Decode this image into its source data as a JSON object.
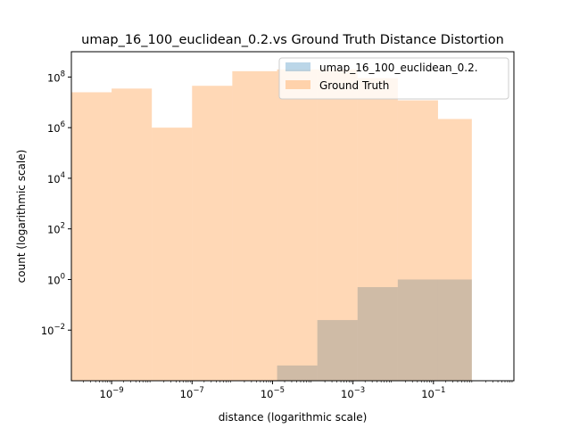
{
  "chart_data": {
    "type": "bar",
    "title": "umap_16_100_euclidean_0.2.vs Ground Truth Distance Distortion",
    "xlabel": "distance (logarithmic scale)",
    "ylabel": "count (logarithmic scale)",
    "xscale": "log",
    "yscale": "log",
    "xlim": [
      1e-10,
      10
    ],
    "ylim": [
      0.0001,
      1000000000
    ],
    "grid": false,
    "legend_position": "top-right",
    "x_ticks": [
      {
        "value": 1e-09,
        "base": "10",
        "exp": "−9"
      },
      {
        "value": 1e-07,
        "base": "10",
        "exp": "−7"
      },
      {
        "value": 1e-05,
        "base": "10",
        "exp": "−5"
      },
      {
        "value": 0.001,
        "base": "10",
        "exp": "−3"
      },
      {
        "value": 0.1,
        "base": "10",
        "exp": "−1"
      }
    ],
    "y_ticks": [
      {
        "value": 0.01,
        "base": "10",
        "exp": "−2"
      },
      {
        "value": 1,
        "base": "10",
        "exp": "0"
      },
      {
        "value": 100,
        "base": "10",
        "exp": "2"
      },
      {
        "value": 10000,
        "base": "10",
        "exp": "4"
      },
      {
        "value": 1000000,
        "base": "10",
        "exp": "6"
      },
      {
        "value": 100000000,
        "base": "10",
        "exp": "8"
      }
    ],
    "series": [
      {
        "name": "umap_16_100_euclidean_0.2.",
        "color": "#1f77b4",
        "opacity": 0.3,
        "bins": [
          {
            "x0": 1.3e-05,
            "x1": 0.00013,
            "count": 0.0004
          },
          {
            "x0": 0.00013,
            "x1": 0.0013,
            "count": 0.025
          },
          {
            "x0": 0.0013,
            "x1": 0.013,
            "count": 0.5
          },
          {
            "x0": 0.013,
            "x1": 0.9,
            "count": 1.0
          }
        ]
      },
      {
        "name": "Ground Truth",
        "color": "#ff7f0e",
        "opacity": 0.3,
        "bins": [
          {
            "x0": 1e-10,
            "x1": 1e-09,
            "count": 25000000
          },
          {
            "x0": 1e-09,
            "x1": 1e-08,
            "count": 35000000
          },
          {
            "x0": 1e-08,
            "x1": 1e-07,
            "count": 1000000
          },
          {
            "x0": 1e-07,
            "x1": 1e-06,
            "count": 45000000
          },
          {
            "x0": 1e-06,
            "x1": 1.3e-05,
            "count": 170000000
          },
          {
            "x0": 1.3e-05,
            "x1": 0.00013,
            "count": 200000000
          },
          {
            "x0": 0.00013,
            "x1": 0.0013,
            "count": 200000000
          },
          {
            "x0": 0.0013,
            "x1": 0.013,
            "count": 90000000
          },
          {
            "x0": 0.013,
            "x1": 0.13,
            "count": 12000000
          },
          {
            "x0": 0.13,
            "x1": 0.9,
            "count": 2200000
          }
        ]
      }
    ]
  }
}
